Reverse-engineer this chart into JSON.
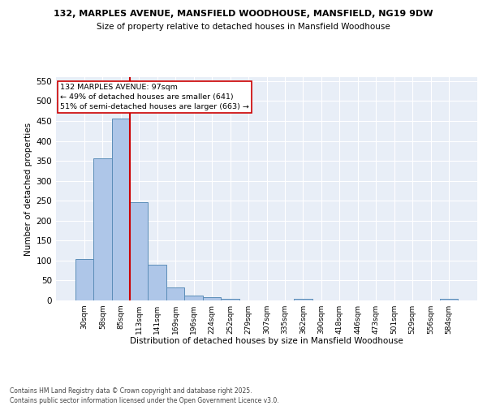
{
  "title1": "132, MARPLES AVENUE, MANSFIELD WOODHOUSE, MANSFIELD, NG19 9DW",
  "title2": "Size of property relative to detached houses in Mansfield Woodhouse",
  "xlabel": "Distribution of detached houses by size in Mansfield Woodhouse",
  "ylabel": "Number of detached properties",
  "footnote": "Contains HM Land Registry data © Crown copyright and database right 2025.\nContains public sector information licensed under the Open Government Licence v3.0.",
  "bar_labels": [
    "30sqm",
    "58sqm",
    "85sqm",
    "113sqm",
    "141sqm",
    "169sqm",
    "196sqm",
    "224sqm",
    "252sqm",
    "279sqm",
    "307sqm",
    "335sqm",
    "362sqm",
    "390sqm",
    "418sqm",
    "446sqm",
    "473sqm",
    "501sqm",
    "529sqm",
    "556sqm",
    "584sqm"
  ],
  "bar_values": [
    103,
    357,
    457,
    247,
    90,
    33,
    13,
    8,
    5,
    0,
    0,
    0,
    4,
    0,
    0,
    0,
    0,
    0,
    0,
    0,
    4
  ],
  "bar_color": "#aec6e8",
  "bar_edge_color": "#5b8db8",
  "background_color": "#e8eef7",
  "grid_color": "#ffffff",
  "ref_line_color": "#cc0000",
  "annotation_text": "132 MARPLES AVENUE: 97sqm\n← 49% of detached houses are smaller (641)\n51% of semi-detached houses are larger (663) →",
  "annotation_box_color": "#ffffff",
  "annotation_box_edge": "#cc0000",
  "ylim": [
    0,
    560
  ],
  "yticks": [
    0,
    50,
    100,
    150,
    200,
    250,
    300,
    350,
    400,
    450,
    500,
    550
  ],
  "ref_bar_index": 2.5
}
